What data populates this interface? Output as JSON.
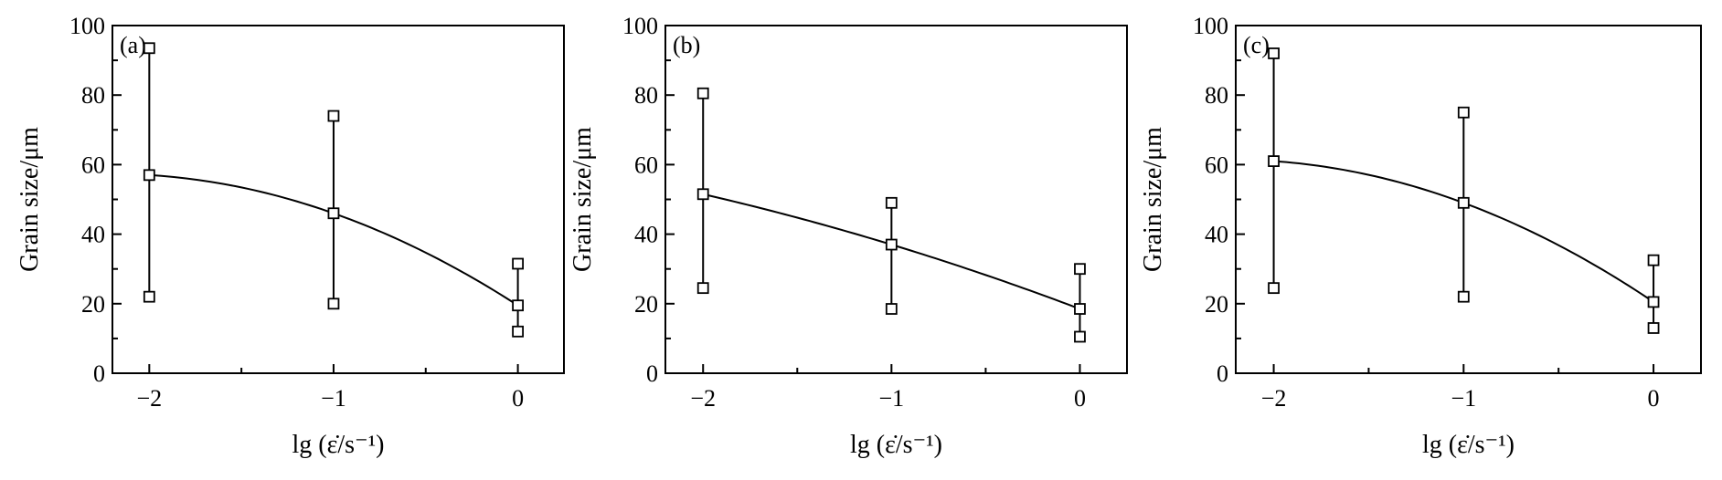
{
  "chart_data": [
    {
      "type": "scatter",
      "panel_label": "(a)",
      "xlabel": "lg (ε̇/s⁻¹)",
      "ylabel": "Grain size/μm",
      "xlim": [
        -2.2,
        0.25
      ],
      "ylim": [
        0,
        100
      ],
      "xticks": [
        -2,
        -1,
        0
      ],
      "xtick_labels": [
        "−2",
        "−1",
        "0"
      ],
      "yticks": [
        0,
        20,
        40,
        60,
        80,
        100
      ],
      "ytick_labels": [
        "0",
        "20",
        "40",
        "60",
        "80",
        "100"
      ],
      "grid": false,
      "x": [
        -2,
        -1,
        0
      ],
      "y": [
        57,
        46,
        19.5
      ],
      "y_max": [
        93.5,
        74,
        31.5
      ],
      "y_min": [
        22,
        20,
        12
      ]
    },
    {
      "type": "scatter",
      "panel_label": "(b)",
      "xlabel": "lg (ε̇/s⁻¹)",
      "ylabel": "Grain size/μm",
      "xlim": [
        -2.2,
        0.25
      ],
      "ylim": [
        0,
        100
      ],
      "xticks": [
        -2,
        -1,
        0
      ],
      "xtick_labels": [
        "−2",
        "−1",
        "0"
      ],
      "yticks": [
        0,
        20,
        40,
        60,
        80,
        100
      ],
      "ytick_labels": [
        "0",
        "20",
        "40",
        "60",
        "80",
        "100"
      ],
      "grid": false,
      "x": [
        -2,
        -1,
        0
      ],
      "y": [
        51.5,
        37,
        18.5
      ],
      "y_max": [
        80.5,
        49,
        30
      ],
      "y_min": [
        24.5,
        18.5,
        10.5
      ]
    },
    {
      "type": "scatter",
      "panel_label": "(c)",
      "xlabel": "lg (ε̇/s⁻¹)",
      "ylabel": "Grain size/μm",
      "xlim": [
        -2.2,
        0.25
      ],
      "ylim": [
        0,
        100
      ],
      "xticks": [
        -2,
        -1,
        0
      ],
      "xtick_labels": [
        "−2",
        "−1",
        "0"
      ],
      "yticks": [
        0,
        20,
        40,
        60,
        80,
        100
      ],
      "ytick_labels": [
        "0",
        "20",
        "40",
        "60",
        "80",
        "100"
      ],
      "grid": false,
      "x": [
        -2,
        -1,
        0
      ],
      "y": [
        61,
        49,
        20.5
      ],
      "y_max": [
        92,
        75,
        32.5
      ],
      "y_min": [
        24.5,
        22,
        13
      ]
    }
  ]
}
